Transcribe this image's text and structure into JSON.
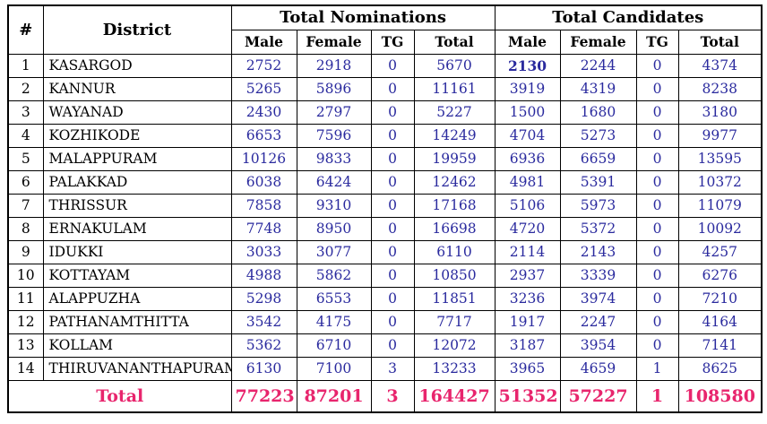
{
  "colors": {
    "background": "#ffffff",
    "border": "#000000",
    "header_text": "#000000",
    "value_text": "#2a2a9e",
    "total_text": "#e8256d"
  },
  "chart_data": {
    "type": "table",
    "col_hash": "#",
    "col_district": "District",
    "group_headers": [
      "Total Nominations",
      "Total Candidates"
    ],
    "sub_headers": [
      "Male",
      "Female",
      "TG",
      "Total"
    ],
    "rows": [
      {
        "num": "1",
        "district": "KASARGOD",
        "values": [
          "2752",
          "2918",
          "0",
          "5670",
          "2130",
          "2244",
          "0",
          "4374"
        ]
      },
      {
        "num": "2",
        "district": "KANNUR",
        "values": [
          "5265",
          "5896",
          "0",
          "11161",
          "3919",
          "4319",
          "0",
          "8238"
        ]
      },
      {
        "num": "3",
        "district": "WAYANAD",
        "values": [
          "2430",
          "2797",
          "0",
          "5227",
          "1500",
          "1680",
          "0",
          "3180"
        ]
      },
      {
        "num": "4",
        "district": "KOZHIKODE",
        "values": [
          "6653",
          "7596",
          "0",
          "14249",
          "4704",
          "5273",
          "0",
          "9977"
        ]
      },
      {
        "num": "5",
        "district": "MALAPPURAM",
        "values": [
          "10126",
          "9833",
          "0",
          "19959",
          "6936",
          "6659",
          "0",
          "13595"
        ]
      },
      {
        "num": "6",
        "district": "PALAKKAD",
        "values": [
          "6038",
          "6424",
          "0",
          "12462",
          "4981",
          "5391",
          "0",
          "10372"
        ]
      },
      {
        "num": "7",
        "district": "THRISSUR",
        "values": [
          "7858",
          "9310",
          "0",
          "17168",
          "5106",
          "5973",
          "0",
          "11079"
        ]
      },
      {
        "num": "8",
        "district": "ERNAKULAM",
        "values": [
          "7748",
          "8950",
          "0",
          "16698",
          "4720",
          "5372",
          "0",
          "10092"
        ]
      },
      {
        "num": "9",
        "district": "IDUKKI",
        "values": [
          "3033",
          "3077",
          "0",
          "6110",
          "2114",
          "2143",
          "0",
          "4257"
        ]
      },
      {
        "num": "10",
        "district": "KOTTAYAM",
        "values": [
          "4988",
          "5862",
          "0",
          "10850",
          "2937",
          "3339",
          "0",
          "6276"
        ]
      },
      {
        "num": "11",
        "district": "ALAPPUZHA",
        "values": [
          "5298",
          "6553",
          "0",
          "11851",
          "3236",
          "3974",
          "0",
          "7210"
        ]
      },
      {
        "num": "12",
        "district": "PATHANAMTHITTA",
        "values": [
          "3542",
          "4175",
          "0",
          "7717",
          "1917",
          "2247",
          "0",
          "4164"
        ]
      },
      {
        "num": "13",
        "district": "KOLLAM",
        "values": [
          "5362",
          "6710",
          "0",
          "12072",
          "3187",
          "3954",
          "0",
          "7141"
        ]
      },
      {
        "num": "14",
        "district": "THIRUVANANTHAPURAM",
        "values": [
          "6130",
          "7100",
          "3",
          "13233",
          "3965",
          "4659",
          "1",
          "8625"
        ]
      }
    ],
    "bold_cell": {
      "row": 0,
      "value_index": 4
    },
    "total_label": "Total",
    "total_values": [
      "77223",
      "87201",
      "3",
      "164427",
      "51352",
      "57227",
      "1",
      "108580"
    ]
  }
}
